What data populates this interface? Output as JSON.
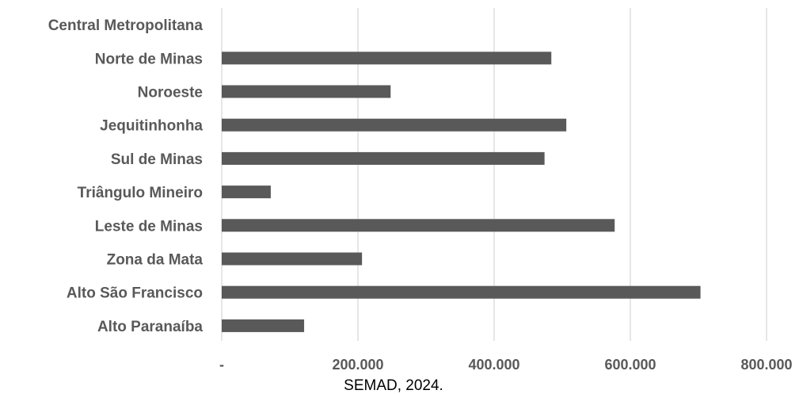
{
  "chart_data": {
    "type": "bar",
    "orientation": "horizontal",
    "categories": [
      "Central Metropolitana",
      "Norte de Minas",
      "Noroeste",
      "Jequitinhonha",
      "Sul de Minas",
      "Triângulo Mineiro",
      "Leste de Minas",
      "Zona da Mata",
      "Alto São Francisco",
      "Alto Paranaíba"
    ],
    "values": [
      0,
      484000,
      248000,
      506000,
      474000,
      72000,
      577000,
      206000,
      703000,
      121000
    ],
    "x_ticks": [
      0,
      200000,
      400000,
      600000,
      800000
    ],
    "x_tick_labels": [
      "-",
      "200.000",
      "400.000",
      "600.000",
      "800.000"
    ],
    "xlim": [
      0,
      800000
    ],
    "grid": "vertical",
    "legend": "none",
    "title": "",
    "xlabel": "",
    "ylabel": "",
    "source": "SEMAD, 2024."
  },
  "colors": {
    "bar": "#595959",
    "grid": "#d9d9d9",
    "label_text": "#595959",
    "background": "#ffffff"
  }
}
